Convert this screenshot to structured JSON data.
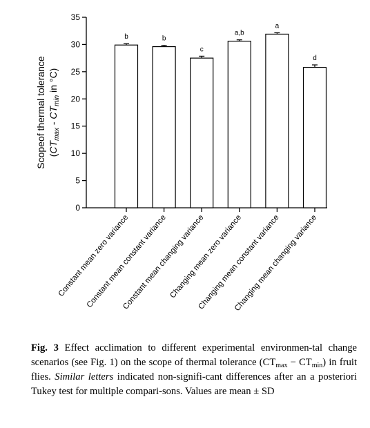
{
  "chart_data": {
    "type": "bar",
    "ylabel_line1": "Scopeof thermal tolerance",
    "ylabel_line2": {
      "open": "(",
      "ct_max": "CT",
      "max_sub": "max",
      "minus": " - ",
      "ct_min": "CT",
      "min_sub": "min",
      "unit": " in °C)"
    },
    "ylim": [
      0,
      35
    ],
    "yticks": [
      0,
      5,
      10,
      15,
      20,
      25,
      30,
      35
    ],
    "categories": [
      "Constant mean zero variance",
      "Constant mean constant variance",
      "Constant mean changing variance",
      "Changing mean zero variance",
      "Changing mean constant variance",
      "Changing mean changing variance"
    ],
    "values": [
      29.9,
      29.6,
      27.5,
      30.6,
      31.9,
      25.8
    ],
    "errors": [
      0.25,
      0.25,
      0.35,
      0.25,
      0.25,
      0.45
    ],
    "significance_letters": [
      "b",
      "b",
      "c",
      "a,b",
      "a",
      "d"
    ],
    "grid": false
  },
  "caption": {
    "fig_label": "Fig. 3",
    "text_1": " Effect acclimation to different experimental environmen-tal change scenarios (see Fig. ",
    "fig_ref": "1",
    "text_2": ") on the scope of thermal tolerance (CT",
    "sub_max": "max",
    "minus": " − CT",
    "sub_min": "min",
    "text_3": ") in fruit flies. ",
    "italic_phrase": "Similar letters",
    "text_4": " indicated non-signifi-cant differences after an a posteriori Tukey test for multiple compari-sons. Values are mean ± SD"
  }
}
